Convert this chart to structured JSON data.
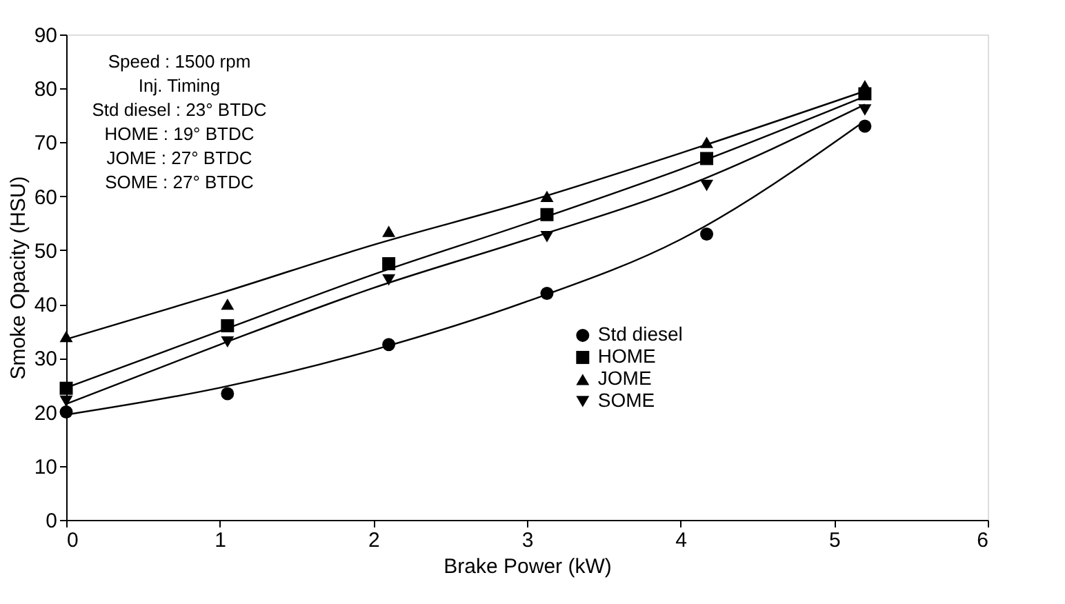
{
  "chart_data": {
    "type": "scatter",
    "xlabel": "Brake Power (kW)",
    "ylabel": "Smoke Opacity (HSU)",
    "xlim": [
      0,
      6
    ],
    "xticks": [
      0,
      1,
      2,
      3,
      4,
      5,
      6
    ],
    "ylim": [
      0,
      90
    ],
    "yticks": [
      0,
      10,
      20,
      30,
      40,
      50,
      60,
      70,
      80,
      90
    ],
    "grid": false,
    "legend": "right",
    "annotations": [
      "Speed : 1500 rpm",
      "Inj. Timing",
      "Std diesel : 23° BTDC",
      "HOME : 19° BTDC",
      "JOME : 27° BTDC",
      "SOME : 27° BTDC"
    ],
    "x": [
      0,
      1.05,
      2.1,
      3.13,
      4.17,
      5.2
    ],
    "series": [
      {
        "name": "Std diesel",
        "marker": "circle",
        "color": "#000000",
        "values": [
          20,
          23.4,
          32.5,
          42,
          53,
          73
        ]
      },
      {
        "name": "HOME",
        "marker": "square",
        "color": "#000000",
        "values": [
          24.4,
          36,
          47.5,
          56.6,
          67,
          79
        ]
      },
      {
        "name": "JOME",
        "marker": "triangle",
        "color": "#000000",
        "values": [
          34,
          40,
          53.5,
          60,
          70,
          80.5
        ]
      },
      {
        "name": "SOME",
        "marker": "triangle-down",
        "color": "#000000",
        "values": [
          22,
          33,
          44.5,
          52.5,
          62,
          76
        ]
      },
      {
        "type": "line",
        "color": "#000000",
        "x": [
          0,
          1,
          2,
          3,
          4,
          5.2
        ],
        "values": [
          19.5,
          24.5,
          31.5,
          40.5,
          52,
          74
        ]
      },
      {
        "type": "line",
        "color": "#000000",
        "x": [
          0,
          1,
          2,
          3,
          4,
          5.2
        ],
        "values": [
          24.5,
          35,
          45.5,
          55,
          65,
          78.5
        ]
      },
      {
        "type": "line",
        "color": "#000000",
        "x": [
          0,
          1,
          2,
          3,
          4,
          5.2
        ],
        "values": [
          33.5,
          42,
          51,
          59,
          68,
          79.5
        ]
      },
      {
        "type": "line",
        "color": "#000000",
        "x": [
          0,
          1,
          2,
          3,
          4,
          5.2
        ],
        "values": [
          21.5,
          32.5,
          43,
          52,
          61.5,
          77
        ]
      }
    ]
  }
}
